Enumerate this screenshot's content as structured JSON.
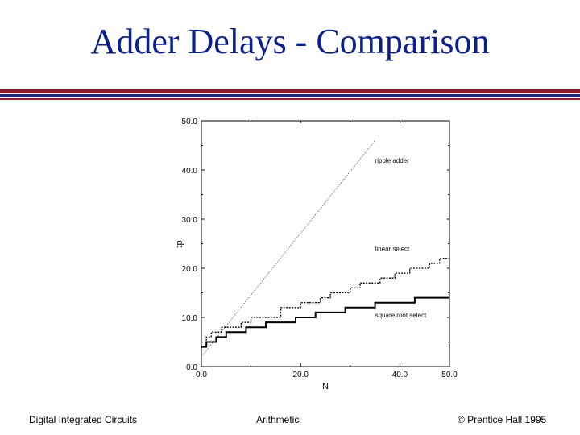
{
  "slide": {
    "title": "Adder Delays - Comparison",
    "footer_left": "Digital Integrated Circuits",
    "footer_center": "Arithmetic",
    "footer_right": "© Prentice Hall 1995",
    "title_color": "#0b1f8a",
    "rule_colors": [
      "#8b1a2b",
      "#1e2a7a"
    ]
  },
  "chart_data": {
    "type": "line",
    "title": "",
    "xlabel": "N",
    "ylabel": "tp",
    "xlim": [
      0,
      50
    ],
    "ylim": [
      0,
      50
    ],
    "xticks": [
      "0.0",
      "20.0",
      "40.0",
      "50.0"
    ],
    "xtick_values": [
      0,
      20,
      40,
      50
    ],
    "yticks": [
      "0.0",
      "10.0",
      "20.0",
      "30.0",
      "40.0",
      "50.0"
    ],
    "ytick_values": [
      0,
      10,
      20,
      30,
      40,
      50
    ],
    "grid": false,
    "series": [
      {
        "name": "ripple adder",
        "style": "dotted",
        "label_at": [
          35,
          41.5
        ],
        "points": [
          [
            0,
            2
          ],
          [
            35,
            46
          ]
        ]
      },
      {
        "name": "linear select",
        "style": "dashed-step",
        "label_at": [
          35,
          23.5
        ],
        "points": [
          [
            0,
            4
          ],
          [
            1,
            4
          ],
          [
            1,
            6
          ],
          [
            2,
            6
          ],
          [
            2,
            7
          ],
          [
            4,
            7
          ],
          [
            4,
            8
          ],
          [
            8,
            8
          ],
          [
            8,
            9
          ],
          [
            10,
            9
          ],
          [
            10,
            10
          ],
          [
            16,
            10
          ],
          [
            16,
            12
          ],
          [
            20,
            12
          ],
          [
            20,
            13
          ],
          [
            24,
            13
          ],
          [
            24,
            14
          ],
          [
            26,
            14
          ],
          [
            26,
            15
          ],
          [
            30,
            15
          ],
          [
            30,
            16
          ],
          [
            32,
            16
          ],
          [
            32,
            17
          ],
          [
            36,
            17
          ],
          [
            36,
            18
          ],
          [
            39,
            18
          ],
          [
            39,
            19
          ],
          [
            42,
            19
          ],
          [
            42,
            20
          ],
          [
            46,
            20
          ],
          [
            46,
            21
          ],
          [
            48,
            21
          ],
          [
            48,
            22
          ],
          [
            50,
            22
          ]
        ]
      },
      {
        "name": "square root select",
        "style": "solid-step",
        "label_at": [
          35,
          10
        ],
        "points": [
          [
            0,
            4
          ],
          [
            1,
            4
          ],
          [
            1,
            5
          ],
          [
            3,
            5
          ],
          [
            3,
            6
          ],
          [
            5,
            6
          ],
          [
            5,
            7
          ],
          [
            9,
            7
          ],
          [
            9,
            8
          ],
          [
            13,
            8
          ],
          [
            13,
            9
          ],
          [
            19,
            9
          ],
          [
            19,
            10
          ],
          [
            23,
            10
          ],
          [
            23,
            11
          ],
          [
            29,
            11
          ],
          [
            29,
            12
          ],
          [
            35,
            12
          ],
          [
            35,
            13
          ],
          [
            43,
            13
          ],
          [
            43,
            14
          ],
          [
            50,
            14
          ]
        ]
      }
    ]
  }
}
